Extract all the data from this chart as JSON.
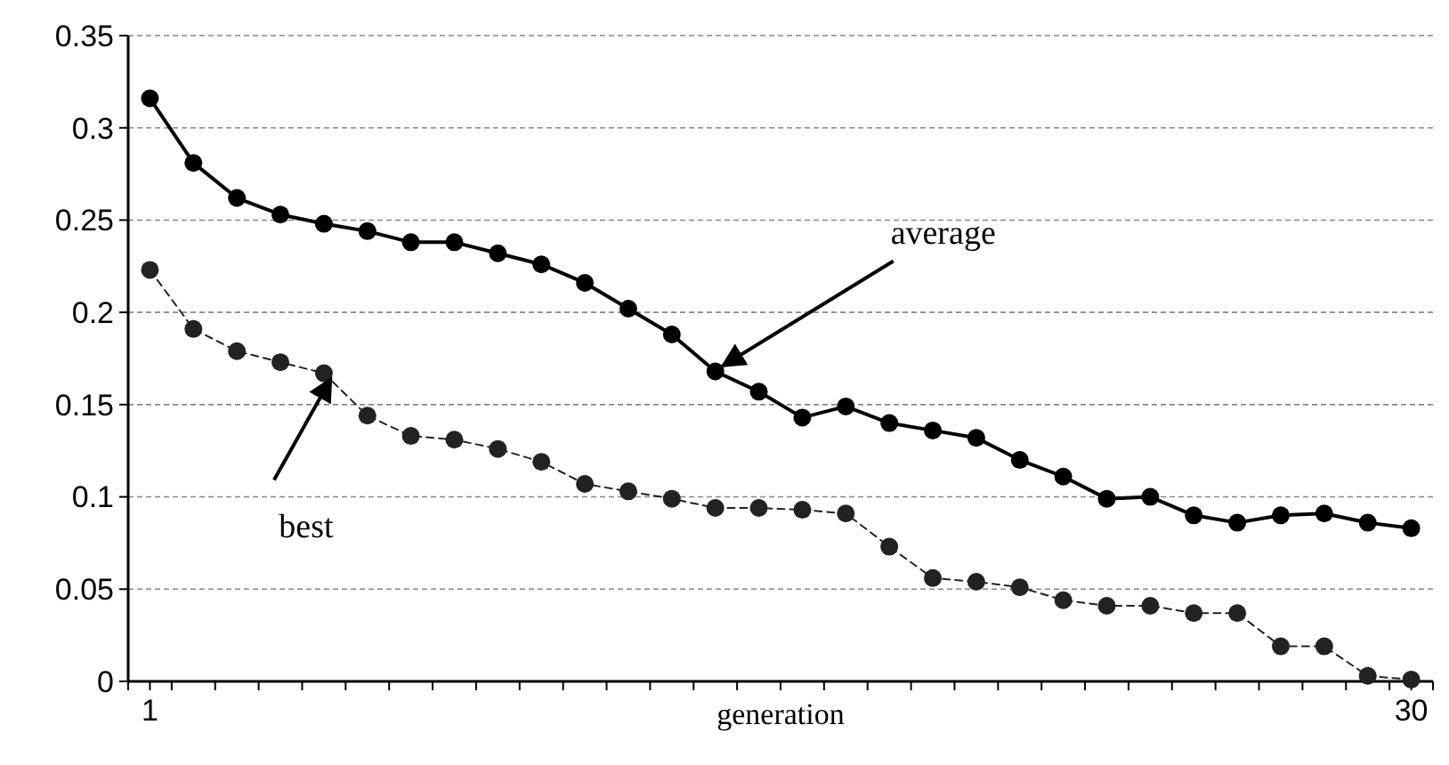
{
  "chart_data": {
    "type": "line",
    "xlabel": "generation",
    "x": [
      1,
      2,
      3,
      4,
      5,
      6,
      7,
      8,
      9,
      10,
      11,
      12,
      13,
      14,
      15,
      16,
      17,
      18,
      19,
      20,
      21,
      22,
      23,
      24,
      25,
      26,
      27,
      28,
      29,
      30
    ],
    "xlim": [
      0.5,
      30.5
    ],
    "xticks": [
      {
        "value": 0.5,
        "label": null
      },
      {
        "value": 1,
        "label": "1"
      },
      {
        "value": 1.5,
        "label": null
      },
      {
        "value": 2.5,
        "label": null
      },
      {
        "value": 3.5,
        "label": null
      },
      {
        "value": 4.5,
        "label": null
      },
      {
        "value": 5.5,
        "label": null
      },
      {
        "value": 6.5,
        "label": null
      },
      {
        "value": 7.5,
        "label": null
      },
      {
        "value": 8.5,
        "label": null
      },
      {
        "value": 9.5,
        "label": null
      },
      {
        "value": 10.5,
        "label": null
      },
      {
        "value": 11.5,
        "label": null
      },
      {
        "value": 12.5,
        "label": null
      },
      {
        "value": 13.5,
        "label": null
      },
      {
        "value": 14.5,
        "label": null
      },
      {
        "value": 15.5,
        "label": null
      },
      {
        "value": 16.5,
        "label": null
      },
      {
        "value": 17.5,
        "label": null
      },
      {
        "value": 18.5,
        "label": null
      },
      {
        "value": 19.5,
        "label": null
      },
      {
        "value": 20.5,
        "label": null
      },
      {
        "value": 21.5,
        "label": null
      },
      {
        "value": 22.5,
        "label": null
      },
      {
        "value": 23.5,
        "label": null
      },
      {
        "value": 24.5,
        "label": null
      },
      {
        "value": 25.5,
        "label": null
      },
      {
        "value": 26.5,
        "label": null
      },
      {
        "value": 27.5,
        "label": null
      },
      {
        "value": 28.5,
        "label": null
      },
      {
        "value": 29.5,
        "label": null
      },
      {
        "value": 30,
        "label": "30"
      },
      {
        "value": 30.5,
        "label": null
      }
    ],
    "ylim": [
      0,
      0.35
    ],
    "yticks": [
      0,
      0.05,
      0.1,
      0.15,
      0.2,
      0.25,
      0.3,
      0.35
    ],
    "grid": "y",
    "marker": "circle",
    "series": [
      {
        "color": "#000000",
        "line_style": "solid",
        "values": [
          0.316,
          0.281,
          0.262,
          0.253,
          0.248,
          0.244,
          0.238,
          0.238,
          0.232,
          0.226,
          0.216,
          0.202,
          0.188,
          0.168,
          0.157,
          0.143,
          0.149,
          0.14,
          0.136,
          0.132,
          0.12,
          0.111,
          0.099,
          0.1,
          0.09,
          0.086,
          0.09,
          0.091,
          0.086,
          0.083
        ]
      },
      {
        "color": "#222222",
        "line_style": "dashed",
        "values": [
          0.223,
          0.191,
          0.179,
          0.173,
          0.167,
          0.144,
          0.133,
          0.131,
          0.126,
          0.119,
          0.107,
          0.103,
          0.099,
          0.094,
          0.094,
          0.093,
          0.091,
          0.073,
          0.056,
          0.054,
          0.051,
          0.044,
          0.041,
          0.041,
          0.037,
          0.037,
          0.019,
          0.019,
          0.003,
          0.001
        ]
      }
    ],
    "annotations": [
      {
        "text": "average",
        "x": 14,
        "y": 0.168
      },
      {
        "text": "best",
        "x": 5,
        "y": 0.167
      }
    ]
  }
}
